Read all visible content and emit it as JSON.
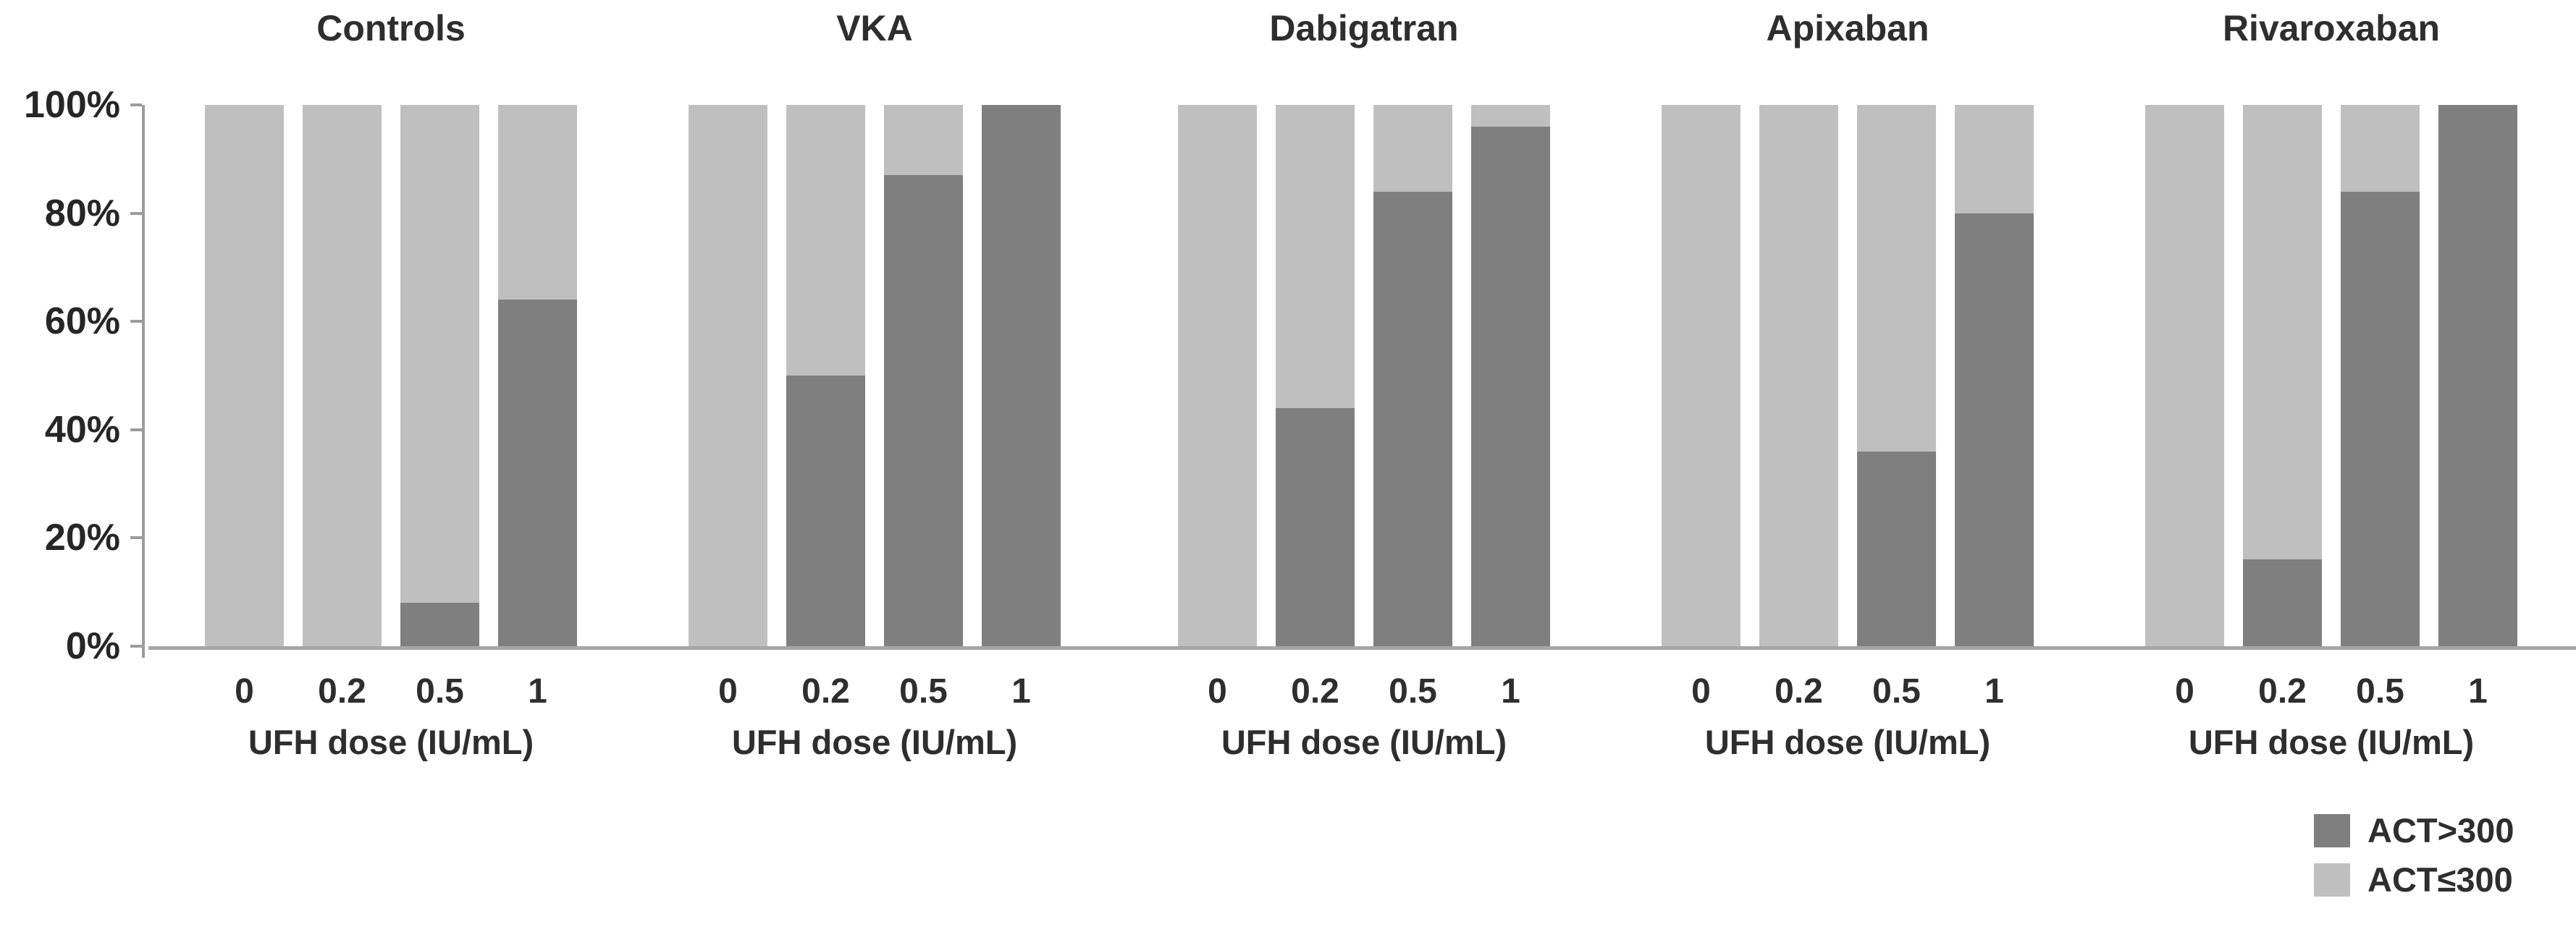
{
  "colors": {
    "dark": "#7f7f7f",
    "light": "#bfbfbf",
    "axis": "#a6a6a6",
    "text": "#2e2e2e"
  },
  "y_axis": {
    "ticks": [
      "100%",
      "80%",
      "60%",
      "40%",
      "20%",
      "0%"
    ]
  },
  "legend": [
    {
      "label": "ACT>300",
      "colorKey": "dark"
    },
    {
      "label": "ACT≤300",
      "colorKey": "light"
    }
  ],
  "chart_data": {
    "type": "bar",
    "stacked": true,
    "unit": "percent of samples",
    "categories": [
      "0",
      "0.2",
      "0.5",
      "1"
    ],
    "xlabel": "UFH dose (IU/mL)",
    "ylabel": "",
    "ylim": [
      0,
      100
    ],
    "yticks": [
      0,
      20,
      40,
      60,
      80,
      100
    ],
    "grid": false,
    "legend_position": "bottom-right",
    "panels": [
      {
        "title": "Controls",
        "series": [
          {
            "name": "ACT>300",
            "values": [
              0,
              0,
              8,
              64
            ]
          },
          {
            "name": "ACT≤300",
            "values": [
              100,
              100,
              92,
              36
            ]
          }
        ]
      },
      {
        "title": "VKA",
        "series": [
          {
            "name": "ACT>300",
            "values": [
              0,
              50,
              87,
              100
            ]
          },
          {
            "name": "ACT≤300",
            "values": [
              100,
              50,
              13,
              0
            ]
          }
        ]
      },
      {
        "title": "Dabigatran",
        "series": [
          {
            "name": "ACT>300",
            "values": [
              0,
              44,
              84,
              96
            ]
          },
          {
            "name": "ACT≤300",
            "values": [
              100,
              56,
              16,
              4
            ]
          }
        ]
      },
      {
        "title": "Apixaban",
        "series": [
          {
            "name": "ACT>300",
            "values": [
              0,
              0,
              36,
              80
            ]
          },
          {
            "name": "ACT≤300",
            "values": [
              100,
              100,
              64,
              20
            ]
          }
        ]
      },
      {
        "title": "Rivaroxaban",
        "series": [
          {
            "name": "ACT>300",
            "values": [
              0,
              16,
              84,
              100
            ]
          },
          {
            "name": "ACT≤300",
            "values": [
              100,
              84,
              16,
              0
            ]
          }
        ]
      }
    ]
  }
}
